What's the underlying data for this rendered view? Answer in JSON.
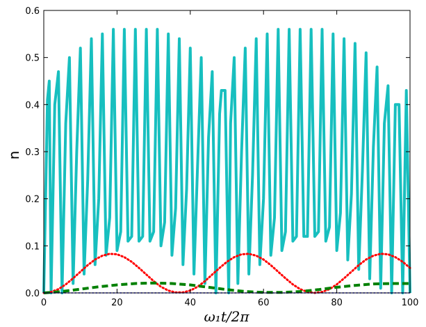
{
  "chart_data": {
    "type": "line",
    "title": "",
    "xlabel": "ω₁t/2π",
    "ylabel": "n",
    "xlim": [
      0,
      100
    ],
    "ylim": [
      0,
      0.6
    ],
    "xticks": [
      "0",
      "20",
      "40",
      "60",
      "80",
      "100"
    ],
    "yticks": [
      "0.0",
      "0.1",
      "0.2",
      "0.3",
      "0.4",
      "0.5",
      "0.6"
    ],
    "grid": false,
    "legend": "none",
    "series": [
      {
        "style": "solid",
        "color": "#17bfbf",
        "description_points": {
          "x": [
            0.0,
            1.0,
            1.5,
            2.0,
            3.0,
            4.0,
            5.0,
            6.0,
            7.0,
            8.0,
            9.0,
            10.0,
            11.0,
            12.0,
            13.0,
            14.0,
            15.0,
            16.0,
            17.0,
            18.0,
            19.0,
            20.0,
            21.0,
            22.0,
            23.0,
            24.0,
            25.0,
            26.0,
            27.0,
            28.0,
            29.0,
            30.0,
            31.0,
            32.0,
            33.0,
            34.0,
            35.0,
            36.0,
            37.0,
            38.0,
            39.0,
            40.0,
            41.0,
            42.0,
            43.0,
            44.0,
            45.0,
            46.0,
            47.0,
            48.0,
            48.5,
            49.5,
            50.5,
            51.0,
            52.0,
            53.0,
            54.0,
            55.0,
            56.0,
            57.0,
            58.0,
            59.0,
            60.0,
            61.0,
            62.0,
            63.0,
            64.0,
            65.0,
            66.0,
            67.0,
            68.0,
            69.0,
            70.0,
            71.0,
            72.0,
            73.0,
            74.0,
            75.0,
            76.0,
            77.0,
            78.0,
            79.0,
            80.0,
            81.0,
            82.0,
            83.0,
            84.0,
            85.0,
            86.0,
            87.0,
            88.0,
            89.0,
            90.0,
            91.0,
            92.0,
            93.0,
            94.0,
            95.0,
            96.0,
            97.0,
            98.0,
            99.0,
            100.0
          ],
          "y": [
            0.0,
            0.41,
            0.45,
            0.0,
            0.4,
            0.47,
            0.0,
            0.36,
            0.5,
            0.02,
            0.3,
            0.52,
            0.04,
            0.24,
            0.54,
            0.06,
            0.2,
            0.55,
            0.08,
            0.16,
            0.56,
            0.09,
            0.13,
            0.56,
            0.11,
            0.12,
            0.56,
            0.11,
            0.12,
            0.56,
            0.11,
            0.13,
            0.56,
            0.1,
            0.15,
            0.55,
            0.08,
            0.18,
            0.54,
            0.06,
            0.22,
            0.52,
            0.04,
            0.27,
            0.5,
            0.02,
            0.33,
            0.47,
            0.0,
            0.38,
            0.43,
            0.43,
            0.0,
            0.36,
            0.5,
            0.02,
            0.3,
            0.52,
            0.04,
            0.25,
            0.54,
            0.06,
            0.2,
            0.55,
            0.08,
            0.16,
            0.56,
            0.09,
            0.13,
            0.56,
            0.11,
            0.12,
            0.56,
            0.12,
            0.12,
            0.56,
            0.12,
            0.13,
            0.56,
            0.11,
            0.14,
            0.55,
            0.09,
            0.17,
            0.54,
            0.07,
            0.21,
            0.53,
            0.05,
            0.26,
            0.51,
            0.03,
            0.31,
            0.48,
            0.01,
            0.36,
            0.44,
            0.0,
            0.4,
            0.4,
            0.0,
            0.43,
            0.0
          ]
        }
      },
      {
        "style": "dotted",
        "color": "#ff0000",
        "x": [
          0,
          2,
          4,
          6,
          8,
          10,
          12,
          14,
          16,
          18,
          20,
          22,
          24,
          26,
          28,
          30,
          32,
          34,
          36,
          38,
          40,
          42,
          44,
          46,
          48,
          50,
          52,
          54,
          56,
          58,
          60,
          62,
          64,
          66,
          68,
          70,
          72,
          74,
          76,
          78,
          80,
          82,
          84,
          86,
          88,
          90,
          92,
          94,
          96,
          98,
          100
        ],
        "y": [
          0.0,
          0.002,
          0.008,
          0.018,
          0.031,
          0.045,
          0.059,
          0.071,
          0.079,
          0.083,
          0.082,
          0.076,
          0.066,
          0.053,
          0.039,
          0.025,
          0.013,
          0.005,
          0.001,
          0.001,
          0.005,
          0.013,
          0.025,
          0.039,
          0.053,
          0.066,
          0.076,
          0.082,
          0.083,
          0.079,
          0.071,
          0.059,
          0.045,
          0.031,
          0.018,
          0.008,
          0.002,
          0.0,
          0.002,
          0.008,
          0.018,
          0.031,
          0.045,
          0.059,
          0.071,
          0.079,
          0.083,
          0.082,
          0.076,
          0.066,
          0.053
        ]
      },
      {
        "style": "dashed",
        "color": "#008000",
        "x": [
          0,
          5,
          10,
          15,
          20,
          25,
          30,
          35,
          40,
          45,
          50,
          55,
          60,
          65,
          70,
          75,
          80,
          85,
          90,
          95,
          100
        ],
        "y": [
          0.0,
          0.003,
          0.008,
          0.013,
          0.017,
          0.02,
          0.021,
          0.02,
          0.017,
          0.012,
          0.007,
          0.003,
          0.001,
          0.001,
          0.003,
          0.007,
          0.012,
          0.016,
          0.019,
          0.02,
          0.02
        ]
      },
      {
        "style": "dotted",
        "color": "#0000ff",
        "x": [
          0,
          100
        ],
        "y": [
          0.0,
          0.0
        ]
      }
    ]
  }
}
